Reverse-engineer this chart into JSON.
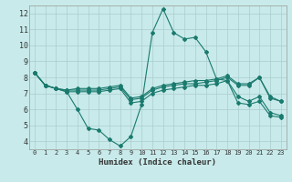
{
  "xlabel": "Humidex (Indice chaleur)",
  "bg_color": "#c8eaea",
  "grid_color": "#aacccc",
  "line_color": "#1a7a6e",
  "xlim": [
    -0.5,
    23.5
  ],
  "ylim": [
    3.5,
    12.5
  ],
  "xticks": [
    0,
    1,
    2,
    3,
    4,
    5,
    6,
    7,
    8,
    9,
    10,
    11,
    12,
    13,
    14,
    15,
    16,
    17,
    18,
    19,
    20,
    21,
    22,
    23
  ],
  "yticks": [
    4,
    5,
    6,
    7,
    8,
    9,
    10,
    11,
    12
  ],
  "lines": [
    {
      "x": [
        0,
        1,
        2,
        3,
        4,
        5,
        6,
        7,
        8,
        9,
        10,
        11,
        12,
        13,
        14,
        15,
        16,
        17,
        18,
        19,
        20,
        21,
        22,
        23
      ],
      "y": [
        8.3,
        7.5,
        7.3,
        7.1,
        6.0,
        4.8,
        4.7,
        4.1,
        3.7,
        4.3,
        6.3,
        10.8,
        12.3,
        10.8,
        10.4,
        10.5,
        9.6,
        7.9,
        7.8,
        6.4,
        6.3,
        6.5,
        5.6,
        5.5
      ]
    },
    {
      "x": [
        0,
        1,
        2,
        3,
        4,
        5,
        6,
        7,
        8,
        9,
        10,
        11,
        12,
        13,
        14,
        15,
        16,
        17,
        18,
        19,
        20,
        21,
        22,
        23
      ],
      "y": [
        8.3,
        7.5,
        7.3,
        7.1,
        7.1,
        7.1,
        7.1,
        7.2,
        7.3,
        6.4,
        6.5,
        7.0,
        7.2,
        7.3,
        7.4,
        7.5,
        7.5,
        7.6,
        7.8,
        6.8,
        6.5,
        6.8,
        5.8,
        5.6
      ]
    },
    {
      "x": [
        0,
        1,
        2,
        3,
        4,
        5,
        6,
        7,
        8,
        9,
        10,
        11,
        12,
        13,
        14,
        15,
        16,
        17,
        18,
        19,
        20,
        21,
        22,
        23
      ],
      "y": [
        8.3,
        7.5,
        7.3,
        7.2,
        7.2,
        7.2,
        7.2,
        7.3,
        7.4,
        6.6,
        6.7,
        7.2,
        7.4,
        7.5,
        7.6,
        7.6,
        7.7,
        7.8,
        8.0,
        7.5,
        7.5,
        8.0,
        6.7,
        6.5
      ]
    },
    {
      "x": [
        0,
        1,
        2,
        3,
        4,
        5,
        6,
        7,
        8,
        9,
        10,
        11,
        12,
        13,
        14,
        15,
        16,
        17,
        18,
        19,
        20,
        21,
        22,
        23
      ],
      "y": [
        8.3,
        7.5,
        7.3,
        7.2,
        7.3,
        7.3,
        7.3,
        7.4,
        7.5,
        6.7,
        6.8,
        7.3,
        7.5,
        7.6,
        7.7,
        7.8,
        7.8,
        7.9,
        8.1,
        7.6,
        7.6,
        8.0,
        6.8,
        6.5
      ]
    }
  ]
}
